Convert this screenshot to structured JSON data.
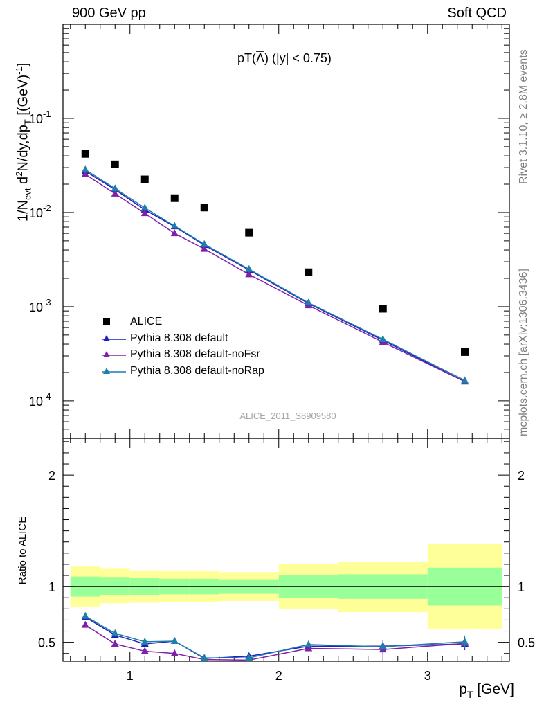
{
  "header": {
    "left": "900 GeV pp",
    "right": "Soft QCD"
  },
  "side_labels": {
    "rivet": "Rivet 3.1.10, ≥ 2.8M events",
    "mcplots": "mcplots.cern.ch [arXiv:1306.3436]"
  },
  "chart_data": {
    "type": "scatter",
    "title": "pT(Λ̅) (|y| < 0.75)",
    "title_main": "pT(",
    "title_symbol": "Λ",
    "title_tail": ") (|y| < 0.75)",
    "watermark": "ALICE_2011_S8909580",
    "xlabel": "p_T [GeV]",
    "xlim": [
      0.55,
      3.55
    ],
    "xticks": [
      "1",
      "2",
      "3"
    ],
    "xtick_values": [
      1,
      2,
      3
    ],
    "main_panel": {
      "ylabel": "1/N_evt d²N/dy,dp_T [(GeV)⁻¹]",
      "ylabel_parts": {
        "a": "1/N",
        "b": "evt",
        "c": " d",
        "d": "2",
        "e": "N/dy,dp",
        "f": "T",
        "g": " [(GeV)",
        "h": "-1",
        "i": "]"
      },
      "yscale": "log",
      "ylim": [
        4e-05,
        1.0
      ],
      "yticks": [
        {
          "value": 0.1,
          "base": "10",
          "exp": "-1"
        },
        {
          "value": 0.01,
          "base": "10",
          "exp": "-2"
        },
        {
          "value": 0.001,
          "base": "10",
          "exp": "-3"
        },
        {
          "value": 0.0001,
          "base": "10",
          "exp": "-4"
        }
      ]
    },
    "ratio_panel": {
      "ylabel": "Ratio to ALICE",
      "ylim": [
        0.33,
        2.33
      ],
      "yticks": [
        "0.5",
        "1",
        "2"
      ],
      "ytick_values": [
        0.5,
        1,
        2
      ],
      "bands": [
        {
          "xlo": 0.6,
          "xhi": 0.8,
          "inner": [
            0.91,
            1.09
          ],
          "outer": [
            0.82,
            1.18
          ]
        },
        {
          "xlo": 0.8,
          "xhi": 1.0,
          "inner": [
            0.92,
            1.08
          ],
          "outer": [
            0.85,
            1.16
          ]
        },
        {
          "xlo": 1.0,
          "xhi": 1.2,
          "inner": [
            0.925,
            1.075
          ],
          "outer": [
            0.855,
            1.145
          ]
        },
        {
          "xlo": 1.2,
          "xhi": 1.4,
          "inner": [
            0.93,
            1.07
          ],
          "outer": [
            0.86,
            1.14
          ]
        },
        {
          "xlo": 1.4,
          "xhi": 1.6,
          "inner": [
            0.93,
            1.07
          ],
          "outer": [
            0.86,
            1.14
          ]
        },
        {
          "xlo": 1.6,
          "xhi": 2.0,
          "inner": [
            0.935,
            1.065
          ],
          "outer": [
            0.87,
            1.13
          ]
        },
        {
          "xlo": 2.0,
          "xhi": 2.4,
          "inner": [
            0.9,
            1.1
          ],
          "outer": [
            0.8,
            1.2
          ]
        },
        {
          "xlo": 2.4,
          "xhi": 3.0,
          "inner": [
            0.89,
            1.11
          ],
          "outer": [
            0.77,
            1.22
          ]
        },
        {
          "xlo": 3.0,
          "xhi": 3.5,
          "inner": [
            0.83,
            1.17
          ],
          "outer": [
            0.62,
            1.38
          ]
        }
      ]
    },
    "series": [
      {
        "name": "ALICE",
        "color": "#000000",
        "marker": "square",
        "x": [
          0.7,
          0.9,
          1.1,
          1.3,
          1.5,
          1.8,
          2.2,
          2.7,
          3.25
        ],
        "y": [
          0.042,
          0.0325,
          0.0225,
          0.0142,
          0.0113,
          0.0061,
          0.00232,
          0.00095,
          0.00033
        ]
      },
      {
        "name": "Pythia 8.308 default",
        "color": "#1f1fbf",
        "marker": "triangle",
        "x": [
          0.7,
          0.9,
          1.1,
          1.3,
          1.5,
          1.8,
          2.2,
          2.7,
          3.25
        ],
        "y": [
          0.0275,
          0.0175,
          0.0107,
          0.0071,
          0.0045,
          0.00245,
          0.00108,
          0.00044,
          0.00016
        ],
        "ratio": [
          0.725,
          0.565,
          0.485,
          0.51,
          0.355,
          0.375,
          0.465,
          0.465,
          0.485
        ]
      },
      {
        "name": "Pythia 8.308 default-noFsr",
        "color": "#7f1faa",
        "marker": "triangle",
        "x": [
          0.7,
          0.9,
          1.1,
          1.3,
          1.5,
          1.8,
          2.2,
          2.7,
          3.25
        ],
        "y": [
          0.0255,
          0.0158,
          0.0098,
          0.006,
          0.0041,
          0.0022,
          0.00103,
          0.00042,
          0.00016
        ],
        "ratio": [
          0.655,
          0.485,
          0.42,
          0.4,
          0.345,
          0.34,
          0.445,
          0.435,
          0.49
        ]
      },
      {
        "name": "Pythia 8.308 default-noRap",
        "color": "#1f7faa",
        "marker": "triangle",
        "x": [
          0.7,
          0.9,
          1.1,
          1.3,
          1.5,
          1.8,
          2.2,
          2.7,
          3.25
        ],
        "y": [
          0.0285,
          0.018,
          0.0112,
          0.0072,
          0.0046,
          0.0025,
          0.0011,
          0.00045,
          0.000165
        ],
        "ratio": [
          0.735,
          0.58,
          0.505,
          0.51,
          0.36,
          0.36,
          0.48,
          0.46,
          0.505
        ]
      }
    ]
  }
}
